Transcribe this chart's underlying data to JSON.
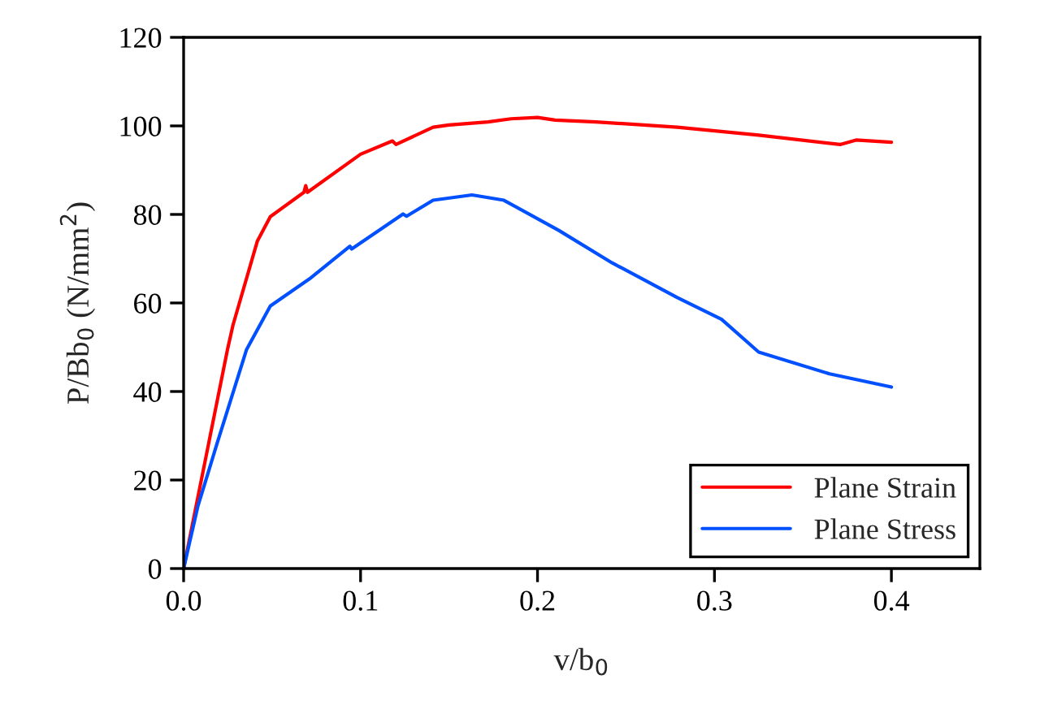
{
  "chart_data": {
    "type": "line",
    "xlabel": "v/b$_{0}$",
    "ylabel": "P/Bb$_{0}$ (N/mm$^{2}$)",
    "xlim": [
      0,
      0.45
    ],
    "xticks": [
      {
        "value": 0,
        "label": "0.0"
      },
      0.1,
      0.2,
      0.3,
      0.4
    ],
    "ylim": [
      0,
      120
    ],
    "yticks": [
      0,
      20,
      40,
      60,
      80,
      100,
      120
    ],
    "grid": false,
    "legend": "bottom right",
    "marker": "none",
    "line_style": "solid",
    "series": [
      {
        "name": "Plane Strain",
        "color": "#ff0000",
        "x": [
          0,
          0.01,
          0.0248,
          0.0279,
          0.0417,
          0.049,
          0.068,
          0.069,
          0.07,
          0.1,
          0.118,
          0.12,
          0.141,
          0.15,
          0.172,
          0.185,
          0.2,
          0.21,
          0.233,
          0.279,
          0.325,
          0.371,
          0.38,
          0.4
        ],
        "values": [
          0,
          20,
          49.5,
          55,
          74,
          79.5,
          85,
          86.5,
          85,
          93.6,
          96.6,
          95.8,
          99.7,
          100.2,
          100.9,
          101.6,
          101.9,
          101.3,
          100.9,
          99.7,
          97.9,
          95.8,
          96.8,
          96.3
        ]
      },
      {
        "name": "Plane Stress",
        "color": "#0050ff",
        "x": [
          0,
          0.008,
          0.0187,
          0.0356,
          0.049,
          0.071,
          0.094,
          0.095,
          0.124,
          0.126,
          0.141,
          0.163,
          0.181,
          0.212,
          0.242,
          0.279,
          0.304,
          0.325,
          0.365,
          0.4
        ],
        "values": [
          0,
          14,
          28,
          49.5,
          59.3,
          65.4,
          72.8,
          72.2,
          80.1,
          79.6,
          83.2,
          84.4,
          83.2,
          76.4,
          69.1,
          61.2,
          56.3,
          48.9,
          44,
          41
        ]
      }
    ]
  }
}
